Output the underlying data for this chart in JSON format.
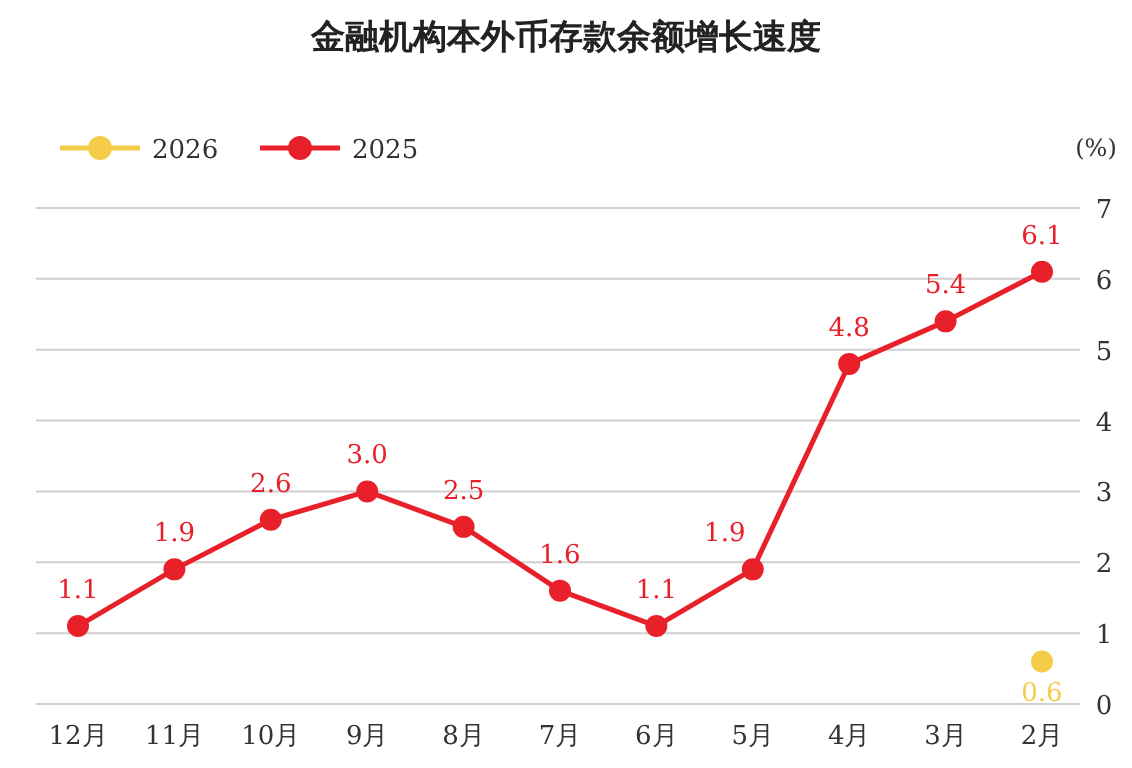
{
  "chart_data": {
    "type": "line",
    "title": "金融机构本外币存款余额增长速度",
    "ylabel": "(%)",
    "categories": [
      "12月",
      "11月",
      "10月",
      "9月",
      "8月",
      "7月",
      "6月",
      "5月",
      "4月",
      "3月",
      "2月"
    ],
    "series": [
      {
        "name": "2026",
        "color": "#f5cc4a",
        "values": [
          null,
          null,
          null,
          null,
          null,
          null,
          null,
          null,
          null,
          null,
          0.6
        ],
        "value_labels": [
          null,
          null,
          null,
          null,
          null,
          null,
          null,
          null,
          null,
          null,
          "0.6"
        ]
      },
      {
        "name": "2025",
        "color": "#e8202a",
        "values": [
          1.1,
          1.9,
          2.6,
          3.0,
          2.5,
          1.6,
          1.1,
          1.9,
          4.8,
          5.4,
          6.1
        ],
        "value_labels": [
          "1.1",
          "1.9",
          "2.6",
          "3.0",
          "2.5",
          "1.6",
          "1.1",
          "1.9",
          "4.8",
          "5.4",
          "6.1"
        ]
      }
    ],
    "ylim": [
      0,
      7
    ],
    "yticks": [
      0,
      1,
      2,
      3,
      4,
      5,
      6,
      7
    ],
    "grid": "y",
    "legend": "top left",
    "marker": "circle",
    "line_style": "solid"
  }
}
